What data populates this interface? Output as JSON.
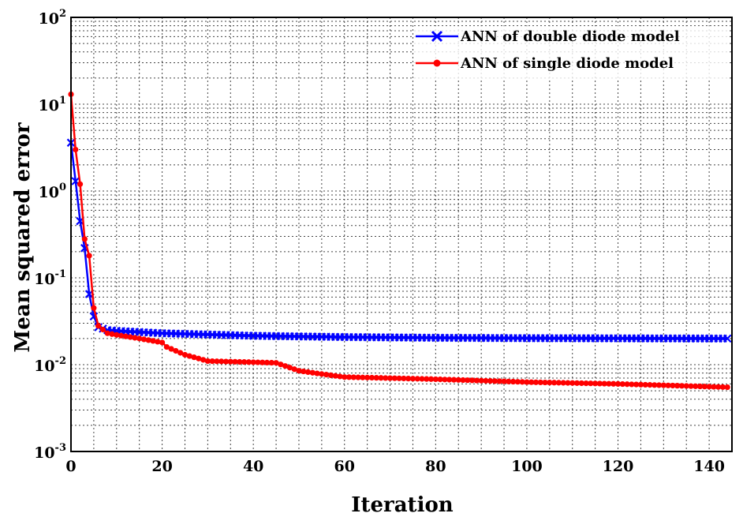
{
  "chart_data": {
    "type": "line",
    "xlabel": "Iteration",
    "ylabel": "Mean squared error",
    "xlim": [
      0,
      145
    ],
    "ylim": [
      0.001,
      100
    ],
    "yscale": "log",
    "grid": true,
    "legend_position": "top-right",
    "x_ticks": [
      "0",
      "20",
      "40",
      "60",
      "80",
      "100",
      "120",
      "140"
    ],
    "y_ticks": [
      {
        "base": "10",
        "exp": "2"
      },
      {
        "base": "10",
        "exp": "1"
      },
      {
        "base": "10",
        "exp": "0"
      },
      {
        "base": "10",
        "exp": "-1"
      },
      {
        "base": "10",
        "exp": "-2"
      },
      {
        "base": "10",
        "exp": "-3"
      }
    ],
    "series": [
      {
        "name": "ANN of double diode model",
        "color": "#0000ff",
        "marker": "x",
        "keypoints": [
          [
            0,
            3.6
          ],
          [
            1,
            1.3
          ],
          [
            2,
            0.45
          ],
          [
            3,
            0.22
          ],
          [
            4,
            0.065
          ],
          [
            5,
            0.036
          ],
          [
            6,
            0.027
          ],
          [
            8,
            0.025
          ],
          [
            10,
            0.0245
          ],
          [
            20,
            0.023
          ],
          [
            40,
            0.0215
          ],
          [
            60,
            0.0208
          ],
          [
            80,
            0.0204
          ],
          [
            100,
            0.0202
          ],
          [
            120,
            0.0201
          ],
          [
            144,
            0.02
          ]
        ]
      },
      {
        "name": "ANN of single diode model",
        "color": "#ff0000",
        "marker": "o",
        "keypoints": [
          [
            0,
            13
          ],
          [
            1,
            3.0
          ],
          [
            2,
            1.2
          ],
          [
            3,
            0.28
          ],
          [
            4,
            0.18
          ],
          [
            5,
            0.045
          ],
          [
            6,
            0.028
          ],
          [
            8,
            0.023
          ],
          [
            10,
            0.022
          ],
          [
            15,
            0.02
          ],
          [
            20,
            0.018
          ],
          [
            21,
            0.016
          ],
          [
            25,
            0.013
          ],
          [
            30,
            0.011
          ],
          [
            45,
            0.0105
          ],
          [
            50,
            0.0085
          ],
          [
            55,
            0.0078
          ],
          [
            60,
            0.0072
          ],
          [
            80,
            0.0068
          ],
          [
            100,
            0.0063
          ],
          [
            120,
            0.006
          ],
          [
            144,
            0.0055
          ]
        ]
      }
    ]
  }
}
